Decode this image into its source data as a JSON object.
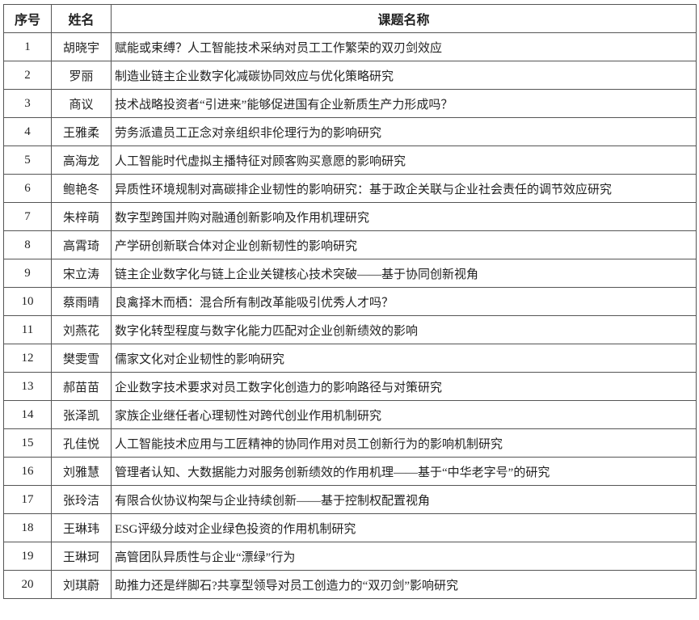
{
  "headers": {
    "index": "序号",
    "name": "姓名",
    "topic": "课题名称"
  },
  "rows": [
    {
      "index": "1",
      "name": "胡晓宇",
      "topic": "赋能或束缚？人工智能技术采纳对员工工作繁荣的双刃剑效应"
    },
    {
      "index": "2",
      "name": "罗丽",
      "topic": "制造业链主企业数字化减碳协同效应与优化策略研究"
    },
    {
      "index": "3",
      "name": "商议",
      "topic": "技术战略投资者“引进来”能够促进国有企业新质生产力形成吗？"
    },
    {
      "index": "4",
      "name": "王雅柔",
      "topic": "劳务派遣员工正念对亲组织非伦理行为的影响研究"
    },
    {
      "index": "5",
      "name": "高海龙",
      "topic": "人工智能时代虚拟主播特征对顾客购买意愿的影响研究"
    },
    {
      "index": "6",
      "name": "鲍艳冬",
      "topic": "异质性环境规制对高碳排企业韧性的影响研究：基于政企关联与企业社会责任的调节效应研究"
    },
    {
      "index": "7",
      "name": "朱梓萌",
      "topic": "数字型跨国并购对融通创新影响及作用机理研究"
    },
    {
      "index": "8",
      "name": "高霄琦",
      "topic": "产学研创新联合体对企业创新韧性的影响研究"
    },
    {
      "index": "9",
      "name": "宋立涛",
      "topic": "链主企业数字化与链上企业关键核心技术突破——基于协同创新视角"
    },
    {
      "index": "10",
      "name": "蔡雨晴",
      "topic": "良禽择木而栖：混合所有制改革能吸引优秀人才吗？"
    },
    {
      "index": "11",
      "name": "刘燕花",
      "topic": "数字化转型程度与数字化能力匹配对企业创新绩效的影响"
    },
    {
      "index": "12",
      "name": "樊雯雪",
      "topic": "儒家文化对企业韧性的影响研究"
    },
    {
      "index": "13",
      "name": "郝苗苗",
      "topic": "企业数字技术要求对员工数字化创造力的影响路径与对策研究"
    },
    {
      "index": "14",
      "name": "张泽凯",
      "topic": "家族企业继任者心理韧性对跨代创业作用机制研究"
    },
    {
      "index": "15",
      "name": "孔佳悦",
      "topic": "人工智能技术应用与工匠精神的协同作用对员工创新行为的影响机制研究"
    },
    {
      "index": "16",
      "name": "刘雅慧",
      "topic": "管理者认知、大数据能力对服务创新绩效的作用机理——基于“中华老字号”的研究"
    },
    {
      "index": "17",
      "name": "张玲洁",
      "topic": "有限合伙协议构架与企业持续创新——基于控制权配置视角"
    },
    {
      "index": "18",
      "name": "王琳玮",
      "topic": "ESG评级分歧对企业绿色投资的作用机制研究"
    },
    {
      "index": "19",
      "name": "王琳珂",
      "topic": "高管团队异质性与企业“漂绿”行为"
    },
    {
      "index": "20",
      "name": "刘琪蔚",
      "topic": "助推力还是绊脚石?共享型领导对员工创造力的“双刃剑”影响研究"
    }
  ]
}
